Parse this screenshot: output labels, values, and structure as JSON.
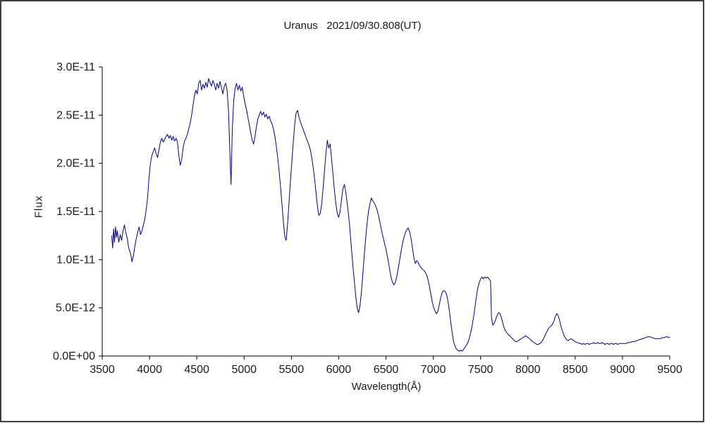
{
  "chart_data": {
    "type": "line",
    "title": "Uranus   2021/09/30.808(UT)",
    "xlabel": "Wavelength(Å)",
    "ylabel": "Flux",
    "grid": false,
    "legend": "none",
    "line_color": "#000080",
    "axis_color": "#000000",
    "background_color": "#ffffff",
    "xlim": [
      3500,
      9500
    ],
    "ylim": [
      0,
      3e-11
    ],
    "x_ticks": [
      3500,
      4000,
      4500,
      5000,
      5500,
      6000,
      6500,
      7000,
      7500,
      8000,
      8500,
      9000,
      9500
    ],
    "y_ticks": [
      0,
      5e-12,
      1e-11,
      1.5e-11,
      2e-11,
      2.5e-11,
      3e-11
    ],
    "y_tick_labels": [
      "0.0E+00",
      "5.0E-12",
      "1.0E-11",
      "1.5E-11",
      "2.0E-11",
      "2.5E-11",
      "3.0E-11"
    ],
    "flux_scale": 1e-12,
    "points": [
      [
        3600,
        12.5
      ],
      [
        3610,
        11.2
      ],
      [
        3620,
        13.2
      ],
      [
        3630,
        11.8
      ],
      [
        3640,
        13.4
      ],
      [
        3650,
        12.3
      ],
      [
        3660,
        13.0
      ],
      [
        3675,
        11.8
      ],
      [
        3690,
        12.6
      ],
      [
        3705,
        12.0
      ],
      [
        3720,
        13.0
      ],
      [
        3735,
        13.6
      ],
      [
        3750,
        12.8
      ],
      [
        3765,
        12.2
      ],
      [
        3780,
        11.2
      ],
      [
        3800,
        10.6
      ],
      [
        3815,
        9.8
      ],
      [
        3830,
        10.4
      ],
      [
        3845,
        11.4
      ],
      [
        3860,
        12.2
      ],
      [
        3875,
        12.8
      ],
      [
        3890,
        13.4
      ],
      [
        3905,
        12.6
      ],
      [
        3920,
        13.0
      ],
      [
        3935,
        13.6
      ],
      [
        3950,
        14.2
      ],
      [
        3965,
        15.2
      ],
      [
        3980,
        16.5
      ],
      [
        3995,
        18.5
      ],
      [
        4010,
        20.0
      ],
      [
        4025,
        20.8
      ],
      [
        4040,
        21.2
      ],
      [
        4055,
        21.6
      ],
      [
        4070,
        21.0
      ],
      [
        4085,
        20.6
      ],
      [
        4100,
        21.4
      ],
      [
        4115,
        22.2
      ],
      [
        4130,
        22.6
      ],
      [
        4145,
        22.2
      ],
      [
        4160,
        22.5
      ],
      [
        4175,
        22.8
      ],
      [
        4190,
        23.0
      ],
      [
        4205,
        22.6
      ],
      [
        4220,
        22.9
      ],
      [
        4235,
        22.4
      ],
      [
        4250,
        22.8
      ],
      [
        4265,
        22.3
      ],
      [
        4280,
        22.6
      ],
      [
        4295,
        22.2
      ],
      [
        4310,
        20.8
      ],
      [
        4325,
        19.8
      ],
      [
        4340,
        20.4
      ],
      [
        4355,
        21.6
      ],
      [
        4370,
        22.3
      ],
      [
        4385,
        22.6
      ],
      [
        4400,
        23.0
      ],
      [
        4415,
        23.6
      ],
      [
        4430,
        24.2
      ],
      [
        4445,
        25.0
      ],
      [
        4460,
        26.0
      ],
      [
        4475,
        27.0
      ],
      [
        4490,
        27.6
      ],
      [
        4505,
        27.2
      ],
      [
        4520,
        28.3
      ],
      [
        4535,
        28.6
      ],
      [
        4550,
        27.6
      ],
      [
        4565,
        28.2
      ],
      [
        4580,
        27.8
      ],
      [
        4595,
        28.4
      ],
      [
        4610,
        27.9
      ],
      [
        4625,
        28.8
      ],
      [
        4640,
        28.4
      ],
      [
        4655,
        28.0
      ],
      [
        4670,
        28.6
      ],
      [
        4685,
        28.2
      ],
      [
        4700,
        27.6
      ],
      [
        4715,
        28.3
      ],
      [
        4730,
        27.8
      ],
      [
        4745,
        28.5
      ],
      [
        4760,
        27.9
      ],
      [
        4775,
        27.2
      ],
      [
        4790,
        28.0
      ],
      [
        4805,
        28.3
      ],
      [
        4820,
        27.6
      ],
      [
        4835,
        25.5
      ],
      [
        4850,
        21.0
      ],
      [
        4862,
        17.8
      ],
      [
        4875,
        23.5
      ],
      [
        4890,
        26.5
      ],
      [
        4905,
        27.8
      ],
      [
        4920,
        28.3
      ],
      [
        4935,
        27.6
      ],
      [
        4950,
        28.1
      ],
      [
        4965,
        27.5
      ],
      [
        4980,
        27.9
      ],
      [
        4995,
        27.0
      ],
      [
        5010,
        26.2
      ],
      [
        5025,
        25.6
      ],
      [
        5040,
        24.8
      ],
      [
        5055,
        24.0
      ],
      [
        5070,
        23.2
      ],
      [
        5085,
        22.4
      ],
      [
        5100,
        22.0
      ],
      [
        5115,
        22.8
      ],
      [
        5130,
        23.8
      ],
      [
        5145,
        24.6
      ],
      [
        5160,
        25.0
      ],
      [
        5175,
        25.4
      ],
      [
        5190,
        25.0
      ],
      [
        5205,
        25.3
      ],
      [
        5220,
        24.8
      ],
      [
        5235,
        25.1
      ],
      [
        5250,
        24.6
      ],
      [
        5265,
        24.9
      ],
      [
        5280,
        24.4
      ],
      [
        5295,
        24.1
      ],
      [
        5310,
        23.6
      ],
      [
        5325,
        22.8
      ],
      [
        5340,
        21.8
      ],
      [
        5355,
        20.6
      ],
      [
        5370,
        19.2
      ],
      [
        5385,
        17.6
      ],
      [
        5400,
        15.8
      ],
      [
        5415,
        14.0
      ],
      [
        5430,
        12.4
      ],
      [
        5445,
        12.0
      ],
      [
        5460,
        13.8
      ],
      [
        5475,
        16.0
      ],
      [
        5490,
        18.2
      ],
      [
        5505,
        20.2
      ],
      [
        5520,
        22.2
      ],
      [
        5535,
        24.0
      ],
      [
        5550,
        25.2
      ],
      [
        5565,
        25.5
      ],
      [
        5580,
        24.8
      ],
      [
        5595,
        24.3
      ],
      [
        5610,
        23.9
      ],
      [
        5625,
        23.5
      ],
      [
        5640,
        23.1
      ],
      [
        5655,
        22.7
      ],
      [
        5670,
        22.3
      ],
      [
        5685,
        21.9
      ],
      [
        5700,
        21.4
      ],
      [
        5715,
        20.6
      ],
      [
        5730,
        19.6
      ],
      [
        5745,
        18.4
      ],
      [
        5760,
        17.0
      ],
      [
        5775,
        15.6
      ],
      [
        5790,
        14.6
      ],
      [
        5805,
        14.8
      ],
      [
        5820,
        15.8
      ],
      [
        5835,
        17.4
      ],
      [
        5850,
        19.2
      ],
      [
        5865,
        21.0
      ],
      [
        5880,
        22.4
      ],
      [
        5895,
        21.6
      ],
      [
        5910,
        22.0
      ],
      [
        5925,
        20.4
      ],
      [
        5940,
        18.8
      ],
      [
        5955,
        17.2
      ],
      [
        5970,
        15.8
      ],
      [
        5985,
        14.8
      ],
      [
        6000,
        14.4
      ],
      [
        6015,
        15.0
      ],
      [
        6030,
        16.2
      ],
      [
        6045,
        17.4
      ],
      [
        6060,
        17.8
      ],
      [
        6075,
        17.0
      ],
      [
        6090,
        15.8
      ],
      [
        6105,
        14.6
      ],
      [
        6120,
        13.0
      ],
      [
        6135,
        11.2
      ],
      [
        6150,
        9.4
      ],
      [
        6165,
        7.8
      ],
      [
        6180,
        6.2
      ],
      [
        6195,
        5.0
      ],
      [
        6210,
        4.5
      ],
      [
        6225,
        5.2
      ],
      [
        6240,
        6.6
      ],
      [
        6255,
        8.4
      ],
      [
        6270,
        10.4
      ],
      [
        6285,
        12.2
      ],
      [
        6300,
        13.8
      ],
      [
        6315,
        15.0
      ],
      [
        6330,
        15.8
      ],
      [
        6345,
        16.4
      ],
      [
        6360,
        16.1
      ],
      [
        6375,
        15.9
      ],
      [
        6390,
        15.6
      ],
      [
        6405,
        15.2
      ],
      [
        6420,
        14.6
      ],
      [
        6435,
        13.9
      ],
      [
        6450,
        13.2
      ],
      [
        6465,
        12.5
      ],
      [
        6480,
        11.9
      ],
      [
        6495,
        11.3
      ],
      [
        6510,
        10.6
      ],
      [
        6525,
        9.8
      ],
      [
        6540,
        8.9
      ],
      [
        6555,
        8.1
      ],
      [
        6570,
        7.6
      ],
      [
        6585,
        7.4
      ],
      [
        6600,
        7.7
      ],
      [
        6615,
        8.3
      ],
      [
        6630,
        9.1
      ],
      [
        6645,
        10.0
      ],
      [
        6660,
        10.9
      ],
      [
        6675,
        11.7
      ],
      [
        6690,
        12.3
      ],
      [
        6705,
        12.8
      ],
      [
        6720,
        13.1
      ],
      [
        6735,
        13.3
      ],
      [
        6750,
        12.9
      ],
      [
        6765,
        12.2
      ],
      [
        6780,
        11.2
      ],
      [
        6795,
        10.2
      ],
      [
        6810,
        9.6
      ],
      [
        6825,
        9.9
      ],
      [
        6840,
        9.7
      ],
      [
        6855,
        9.4
      ],
      [
        6870,
        9.2
      ],
      [
        6885,
        9.0
      ],
      [
        6900,
        8.9
      ],
      [
        6915,
        8.7
      ],
      [
        6930,
        8.4
      ],
      [
        6945,
        7.9
      ],
      [
        6960,
        7.2
      ],
      [
        6975,
        6.4
      ],
      [
        6990,
        5.6
      ],
      [
        7005,
        5.0
      ],
      [
        7020,
        4.6
      ],
      [
        7035,
        4.4
      ],
      [
        7050,
        4.7
      ],
      [
        7065,
        5.4
      ],
      [
        7080,
        6.1
      ],
      [
        7095,
        6.6
      ],
      [
        7110,
        6.8
      ],
      [
        7125,
        6.7
      ],
      [
        7140,
        6.4
      ],
      [
        7155,
        5.7
      ],
      [
        7170,
        4.7
      ],
      [
        7185,
        3.5
      ],
      [
        7200,
        2.4
      ],
      [
        7215,
        1.5
      ],
      [
        7230,
        1.0
      ],
      [
        7245,
        0.7
      ],
      [
        7260,
        0.6
      ],
      [
        7275,
        0.5
      ],
      [
        7290,
        0.6
      ],
      [
        7305,
        0.5
      ],
      [
        7320,
        0.7
      ],
      [
        7335,
        0.9
      ],
      [
        7350,
        1.1
      ],
      [
        7365,
        1.4
      ],
      [
        7380,
        1.8
      ],
      [
        7395,
        2.4
      ],
      [
        7410,
        3.1
      ],
      [
        7425,
        4.0
      ],
      [
        7440,
        5.0
      ],
      [
        7455,
        6.1
      ],
      [
        7470,
        7.0
      ],
      [
        7485,
        7.6
      ],
      [
        7500,
        8.0
      ],
      [
        7515,
        8.2
      ],
      [
        7530,
        8.0
      ],
      [
        7545,
        8.2
      ],
      [
        7560,
        8.1
      ],
      [
        7575,
        8.2
      ],
      [
        7590,
        8.0
      ],
      [
        7605,
        7.8
      ],
      [
        7615,
        4.0
      ],
      [
        7630,
        3.2
      ],
      [
        7645,
        3.4
      ],
      [
        7660,
        3.8
      ],
      [
        7675,
        4.2
      ],
      [
        7690,
        4.5
      ],
      [
        7705,
        4.4
      ],
      [
        7720,
        4.0
      ],
      [
        7735,
        3.4
      ],
      [
        7750,
        2.9
      ],
      [
        7765,
        2.6
      ],
      [
        7780,
        2.4
      ],
      [
        7795,
        2.2
      ],
      [
        7810,
        2.1
      ],
      [
        7825,
        1.9
      ],
      [
        7840,
        1.8
      ],
      [
        7855,
        1.6
      ],
      [
        7870,
        1.5
      ],
      [
        7885,
        1.5
      ],
      [
        7900,
        1.6
      ],
      [
        7915,
        1.7
      ],
      [
        7930,
        1.8
      ],
      [
        7945,
        1.9
      ],
      [
        7960,
        2.0
      ],
      [
        7975,
        2.1
      ],
      [
        7990,
        2.0
      ],
      [
        8005,
        1.9
      ],
      [
        8020,
        1.8
      ],
      [
        8035,
        1.6
      ],
      [
        8050,
        1.5
      ],
      [
        8065,
        1.4
      ],
      [
        8080,
        1.3
      ],
      [
        8095,
        1.2
      ],
      [
        8110,
        1.2
      ],
      [
        8125,
        1.3
      ],
      [
        8140,
        1.4
      ],
      [
        8155,
        1.6
      ],
      [
        8170,
        1.9
      ],
      [
        8185,
        2.2
      ],
      [
        8200,
        2.5
      ],
      [
        8215,
        2.8
      ],
      [
        8230,
        3.0
      ],
      [
        8245,
        3.1
      ],
      [
        8260,
        3.3
      ],
      [
        8275,
        3.6
      ],
      [
        8290,
        4.1
      ],
      [
        8305,
        4.4
      ],
      [
        8320,
        4.2
      ],
      [
        8335,
        3.7
      ],
      [
        8350,
        3.1
      ],
      [
        8365,
        2.6
      ],
      [
        8380,
        2.2
      ],
      [
        8395,
        1.9
      ],
      [
        8410,
        1.7
      ],
      [
        8425,
        1.6
      ],
      [
        8440,
        1.7
      ],
      [
        8455,
        1.8
      ],
      [
        8470,
        1.7
      ],
      [
        8485,
        1.6
      ],
      [
        8500,
        1.5
      ],
      [
        8515,
        1.4
      ],
      [
        8530,
        1.4
      ],
      [
        8545,
        1.3
      ],
      [
        8560,
        1.3
      ],
      [
        8575,
        1.2
      ],
      [
        8590,
        1.3
      ],
      [
        8605,
        1.2
      ],
      [
        8620,
        1.3
      ],
      [
        8635,
        1.3
      ],
      [
        8650,
        1.2
      ],
      [
        8665,
        1.3
      ],
      [
        8680,
        1.3
      ],
      [
        8695,
        1.4
      ],
      [
        8710,
        1.3
      ],
      [
        8725,
        1.3
      ],
      [
        8740,
        1.4
      ],
      [
        8755,
        1.3
      ],
      [
        8770,
        1.3
      ],
      [
        8785,
        1.4
      ],
      [
        8800,
        1.3
      ],
      [
        8815,
        1.2
      ],
      [
        8830,
        1.3
      ],
      [
        8845,
        1.3
      ],
      [
        8860,
        1.2
      ],
      [
        8875,
        1.3
      ],
      [
        8890,
        1.3
      ],
      [
        8905,
        1.2
      ],
      [
        8920,
        1.3
      ],
      [
        8935,
        1.3
      ],
      [
        8950,
        1.2
      ],
      [
        8965,
        1.3
      ],
      [
        8980,
        1.3
      ],
      [
        8995,
        1.3
      ],
      [
        9010,
        1.3
      ],
      [
        9025,
        1.3
      ],
      [
        9040,
        1.3
      ],
      [
        9055,
        1.4
      ],
      [
        9070,
        1.4
      ],
      [
        9085,
        1.4
      ],
      [
        9100,
        1.5
      ],
      [
        9115,
        1.5
      ],
      [
        9130,
        1.5
      ],
      [
        9145,
        1.6
      ],
      [
        9160,
        1.6
      ],
      [
        9175,
        1.7
      ],
      [
        9190,
        1.7
      ],
      [
        9205,
        1.8
      ],
      [
        9220,
        1.8
      ],
      [
        9235,
        1.9
      ],
      [
        9250,
        1.9
      ],
      [
        9265,
        2.0
      ],
      [
        9280,
        2.0
      ],
      [
        9295,
        2.0
      ],
      [
        9310,
        1.9
      ],
      [
        9325,
        1.9
      ],
      [
        9340,
        1.8
      ],
      [
        9355,
        1.8
      ],
      [
        9370,
        1.8
      ],
      [
        9385,
        1.8
      ],
      [
        9400,
        1.8
      ],
      [
        9415,
        1.9
      ],
      [
        9430,
        1.9
      ],
      [
        9445,
        1.9
      ],
      [
        9460,
        2.0
      ],
      [
        9475,
        2.0
      ],
      [
        9490,
        1.9
      ],
      [
        9500,
        2.0
      ]
    ]
  }
}
